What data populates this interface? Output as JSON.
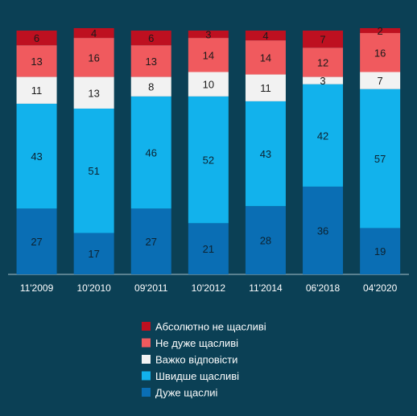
{
  "chart_data": {
    "type": "bar",
    "stacked": true,
    "categories": [
      "11'2009",
      "10'2010",
      "09'2011",
      "10'2012",
      "11'2014",
      "06'2018",
      "04'2020"
    ],
    "series": [
      {
        "name": "Дуже щаслиі",
        "color": "#0a6eb4",
        "values": [
          27,
          17,
          27,
          21,
          28,
          36,
          19
        ]
      },
      {
        "name": "Швидше щасливі",
        "color": "#12b2ec",
        "values": [
          43,
          51,
          46,
          52,
          43,
          42,
          57
        ]
      },
      {
        "name": "Важко відповісти",
        "color": "#f2f2f2",
        "values": [
          11,
          13,
          8,
          10,
          11,
          3,
          7
        ]
      },
      {
        "name": "Не дуже щасливі",
        "color": "#f05a5e",
        "values": [
          13,
          16,
          13,
          14,
          14,
          12,
          16
        ]
      },
      {
        "name": "Абсолютно не щасливі",
        "color": "#be1020",
        "values": [
          6,
          4,
          6,
          3,
          4,
          7,
          2
        ]
      }
    ],
    "legend_order": [
      4,
      3,
      2,
      1,
      0
    ],
    "legend_position": "bottom-center",
    "ylim": [
      0,
      100
    ],
    "grid": false
  }
}
